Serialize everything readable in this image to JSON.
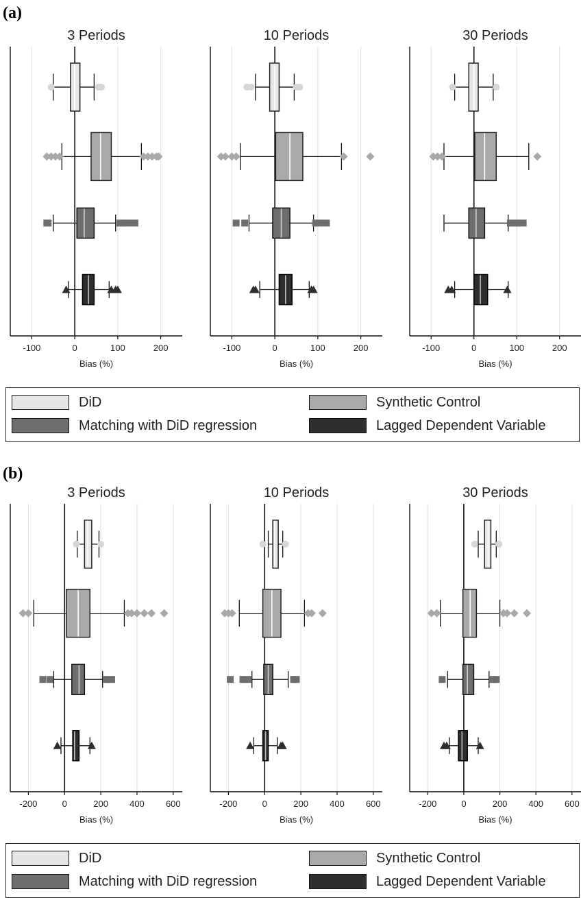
{
  "panel_labels": [
    "(a)",
    "(b)"
  ],
  "legend": [
    {
      "label": "DiD",
      "color": "#e6e6e6"
    },
    {
      "label": "Synthetic Control",
      "color": "#aaaaaa"
    },
    {
      "label": "Matching with DiD regression",
      "color": "#6e6e6e"
    },
    {
      "label": "Lagged Dependent Variable",
      "color": "#2e2e2e"
    }
  ],
  "chart_data": [
    {
      "type": "boxplot",
      "panel": "(a)",
      "title": "3 Periods",
      "xlabel": "Bias (%)",
      "ylabel": "",
      "xlim": [
        -150,
        250
      ],
      "xticks": [
        -100,
        0,
        100,
        200
      ],
      "grid": true,
      "series": [
        {
          "name": "DiD",
          "whisker_low": -50,
          "q1": -10,
          "median": 0,
          "q3": 12,
          "whisker_high": 45,
          "outliers": [
            -55,
            55,
            62
          ]
        },
        {
          "name": "Synthetic Control",
          "whisker_low": -30,
          "q1": 38,
          "median": 60,
          "q3": 85,
          "whisker_high": 155,
          "outliers": [
            -65,
            -55,
            -45,
            -35,
            160,
            170,
            180,
            190,
            195
          ]
        },
        {
          "name": "Matching with DiD regression",
          "whisker_low": -50,
          "q1": 5,
          "median": 22,
          "q3": 45,
          "whisker_high": 95,
          "outliers": [
            -65,
            -62,
            105,
            115,
            125,
            140
          ]
        },
        {
          "name": "Lagged Dependent Variable",
          "whisker_low": -15,
          "q1": 18,
          "median": 32,
          "q3": 45,
          "whisker_high": 80,
          "outliers": [
            -20,
            85,
            95,
            100
          ]
        }
      ]
    },
    {
      "type": "boxplot",
      "panel": "(a)",
      "title": "10 Periods",
      "xlabel": "Bias (%)",
      "ylabel": "",
      "xlim": [
        -150,
        250
      ],
      "xticks": [
        -100,
        0,
        100,
        200
      ],
      "grid": true,
      "series": [
        {
          "name": "DiD",
          "whisker_low": -45,
          "q1": -12,
          "median": 0,
          "q3": 10,
          "whisker_high": 45,
          "outliers": [
            -65,
            -55,
            50,
            58
          ]
        },
        {
          "name": "Synthetic Control",
          "whisker_low": -80,
          "q1": 2,
          "median": 35,
          "q3": 65,
          "whisker_high": 155,
          "outliers": [
            -125,
            -115,
            -100,
            -90,
            160,
            222
          ]
        },
        {
          "name": "Matching with DiD regression",
          "whisker_low": -60,
          "q1": -5,
          "median": 15,
          "q3": 35,
          "whisker_high": 90,
          "outliers": [
            -90,
            -70,
            95,
            105,
            120
          ]
        },
        {
          "name": "Lagged Dependent Variable",
          "whisker_low": -35,
          "q1": 10,
          "median": 25,
          "q3": 40,
          "whisker_high": 80,
          "outliers": [
            -50,
            -45,
            85,
            90
          ]
        }
      ]
    },
    {
      "type": "boxplot",
      "panel": "(a)",
      "title": "30 Periods",
      "xlabel": "Bias (%)",
      "ylabel": "",
      "xlim": [
        -150,
        250
      ],
      "xticks": [
        -100,
        0,
        100,
        200
      ],
      "grid": true,
      "series": [
        {
          "name": "DiD",
          "whisker_low": -45,
          "q1": -12,
          "median": 0,
          "q3": 10,
          "whisker_high": 45,
          "outliers": [
            -50,
            52
          ]
        },
        {
          "name": "Synthetic Control",
          "whisker_low": -70,
          "q1": 2,
          "median": 25,
          "q3": 52,
          "whisker_high": 128,
          "outliers": [
            -95,
            -85,
            -75,
            148
          ]
        },
        {
          "name": "Matching with DiD regression",
          "whisker_low": -70,
          "q1": -12,
          "median": 5,
          "q3": 25,
          "whisker_high": 80,
          "outliers": [
            85,
            95,
            105,
            115
          ]
        },
        {
          "name": "Lagged Dependent Variable",
          "whisker_low": -45,
          "q1": 0,
          "median": 15,
          "q3": 32,
          "whisker_high": 80,
          "outliers": [
            -60,
            -52,
            78
          ]
        }
      ]
    },
    {
      "type": "boxplot",
      "panel": "(b)",
      "title": "3 Periods",
      "xlabel": "Bias (%)",
      "ylabel": "",
      "xlim": [
        -300,
        650
      ],
      "xticks": [
        -200,
        0,
        200,
        400,
        600
      ],
      "grid": true,
      "series": [
        {
          "name": "DiD",
          "whisker_low": 70,
          "q1": 110,
          "median": 128,
          "q3": 150,
          "whisker_high": 190,
          "outliers": [
            65,
            200
          ]
        },
        {
          "name": "Synthetic Control",
          "whisker_low": -170,
          "q1": 10,
          "median": 75,
          "q3": 140,
          "whisker_high": 330,
          "outliers": [
            -230,
            -200,
            350,
            370,
            400,
            440,
            480,
            550
          ]
        },
        {
          "name": "Matching with DiD regression",
          "whisker_low": -60,
          "q1": 40,
          "median": 80,
          "q3": 110,
          "whisker_high": 210,
          "outliers": [
            -120,
            -80,
            230,
            260
          ]
        },
        {
          "name": "Lagged Dependent Variable",
          "whisker_low": -20,
          "q1": 45,
          "median": 55,
          "q3": 80,
          "whisker_high": 140,
          "outliers": [
            -40,
            150
          ]
        }
      ]
    },
    {
      "type": "boxplot",
      "panel": "(b)",
      "title": "10 Periods",
      "xlabel": "Bias (%)",
      "ylabel": "",
      "xlim": [
        -300,
        650
      ],
      "xticks": [
        -200,
        0,
        200,
        400,
        600
      ],
      "grid": true,
      "series": [
        {
          "name": "DiD",
          "whisker_low": 20,
          "q1": 45,
          "median": 55,
          "q3": 75,
          "whisker_high": 100,
          "outliers": [
            -10,
            115
          ]
        },
        {
          "name": "Synthetic Control",
          "whisker_low": -140,
          "q1": -10,
          "median": 40,
          "q3": 90,
          "whisker_high": 220,
          "outliers": [
            -220,
            -200,
            -180,
            240,
            260,
            320
          ]
        },
        {
          "name": "Matching with DiD regression",
          "whisker_low": -70,
          "q1": -5,
          "median": 20,
          "q3": 45,
          "whisker_high": 130,
          "outliers": [
            -190,
            -120,
            -90,
            160,
            175
          ]
        },
        {
          "name": "Lagged Dependent Variable",
          "whisker_low": -60,
          "q1": -10,
          "median": 5,
          "q3": 20,
          "whisker_high": 70,
          "outliers": [
            -80,
            90,
            100
          ]
        }
      ]
    },
    {
      "type": "boxplot",
      "panel": "(b)",
      "title": "30 Periods",
      "xlabel": "Bias (%)",
      "ylabel": "",
      "xlim": [
        -300,
        650
      ],
      "xticks": [
        -200,
        0,
        200,
        400,
        600
      ],
      "grid": true,
      "series": [
        {
          "name": "DiD",
          "whisker_low": 80,
          "q1": 115,
          "median": 135,
          "q3": 150,
          "whisker_high": 180,
          "outliers": [
            60,
            195
          ]
        },
        {
          "name": "Synthetic Control",
          "whisker_low": -130,
          "q1": -5,
          "median": 35,
          "q3": 70,
          "whisker_high": 200,
          "outliers": [
            -180,
            -150,
            220,
            240,
            280,
            350
          ]
        },
        {
          "name": "Matching with DiD regression",
          "whisker_low": -90,
          "q1": -5,
          "median": 20,
          "q3": 55,
          "whisker_high": 140,
          "outliers": [
            -120,
            160,
            180
          ]
        },
        {
          "name": "Lagged Dependent Variable",
          "whisker_low": -80,
          "q1": -30,
          "median": -10,
          "q3": 20,
          "whisker_high": 80,
          "outliers": [
            -110,
            -95,
            90
          ]
        }
      ]
    }
  ]
}
